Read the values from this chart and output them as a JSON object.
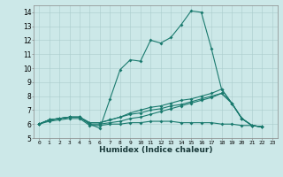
{
  "title": "",
  "xlabel": "Humidex (Indice chaleur)",
  "xlim": [
    -0.5,
    23.5
  ],
  "ylim": [
    5,
    14.5
  ],
  "yticks": [
    5,
    6,
    7,
    8,
    9,
    10,
    11,
    12,
    13,
    14
  ],
  "xticks": [
    0,
    1,
    2,
    3,
    4,
    5,
    6,
    7,
    8,
    9,
    10,
    11,
    12,
    13,
    14,
    15,
    16,
    17,
    18,
    19,
    20,
    21,
    22,
    23
  ],
  "bg_color": "#cce8e8",
  "line_color": "#1a7a6e",
  "lines": [
    [
      6.0,
      6.3,
      6.4,
      6.5,
      6.5,
      6.0,
      5.7,
      7.8,
      9.9,
      10.6,
      10.5,
      12.0,
      11.8,
      12.2,
      13.1,
      14.1,
      14.0,
      11.4,
      8.5,
      7.5,
      6.4,
      5.9,
      5.8
    ],
    [
      6.0,
      6.3,
      6.4,
      6.5,
      6.5,
      6.0,
      6.0,
      6.1,
      6.2,
      6.4,
      6.5,
      6.7,
      6.9,
      7.1,
      7.3,
      7.5,
      7.7,
      7.9,
      8.2,
      7.5,
      6.4,
      5.9,
      5.8
    ],
    [
      6.0,
      6.3,
      6.4,
      6.5,
      6.5,
      6.1,
      6.1,
      6.3,
      6.5,
      6.8,
      7.0,
      7.2,
      7.3,
      7.5,
      7.7,
      7.8,
      8.0,
      8.2,
      8.5,
      7.5,
      6.4,
      5.9,
      5.8
    ],
    [
      6.0,
      6.3,
      6.4,
      6.5,
      6.5,
      6.1,
      6.1,
      6.3,
      6.5,
      6.7,
      6.8,
      7.0,
      7.1,
      7.3,
      7.4,
      7.6,
      7.8,
      8.0,
      8.2,
      7.5,
      6.4,
      5.9,
      5.8
    ],
    [
      6.0,
      6.2,
      6.3,
      6.4,
      6.4,
      5.9,
      5.9,
      6.0,
      6.0,
      6.1,
      6.1,
      6.2,
      6.2,
      6.2,
      6.1,
      6.1,
      6.1,
      6.1,
      6.0,
      6.0,
      5.9,
      5.9,
      5.8
    ]
  ]
}
